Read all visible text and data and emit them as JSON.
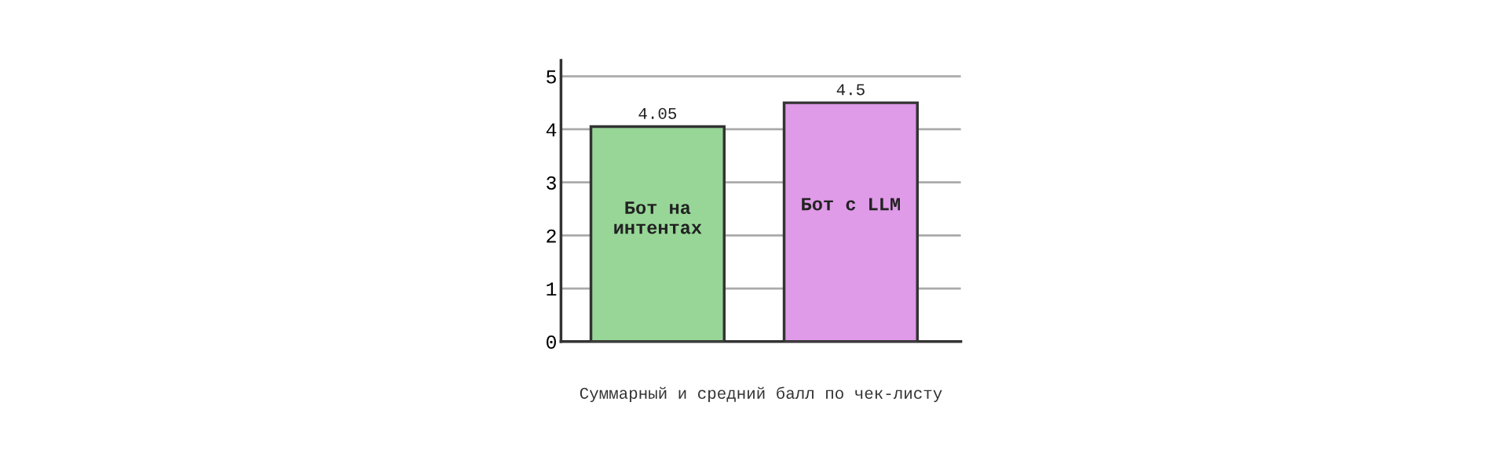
{
  "chart_data": {
    "type": "bar",
    "categories": [
      "Бот на\nинтентах",
      "Бот с LLM"
    ],
    "values": [
      4.05,
      4.5
    ],
    "colors": [
      "#98d698",
      "#df9ae8"
    ],
    "ylim": [
      0,
      5.3
    ],
    "yticks": [
      0,
      1,
      2,
      3,
      4,
      5
    ],
    "grid": "y",
    "data_labels": true,
    "tick_labels": "y",
    "annotations": [
      "Суммарный и средний балл по чек-листу"
    ]
  }
}
